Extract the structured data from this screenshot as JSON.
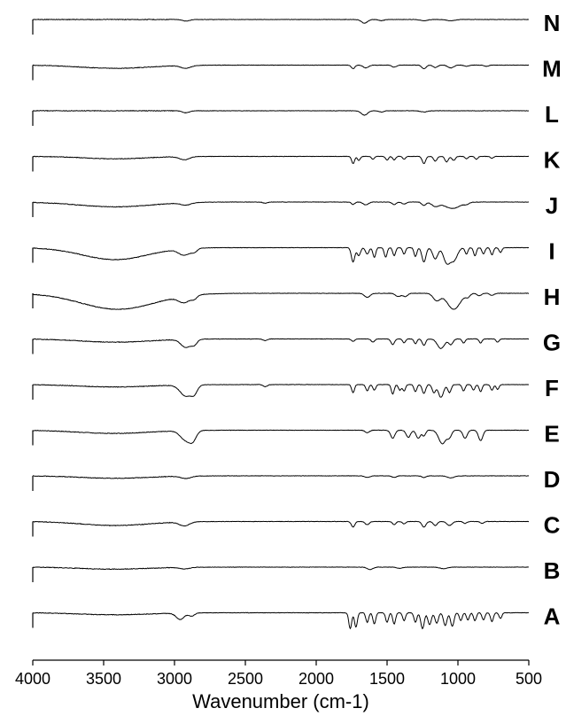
{
  "chart_data": {
    "type": "line",
    "title": "",
    "xlabel": "Wavenumber (cm-1)",
    "ylabel": "",
    "xlim": [
      4000,
      500
    ],
    "x_reversed": true,
    "xticks": [
      4000,
      3500,
      3000,
      2500,
      2000,
      1500,
      1000,
      500
    ],
    "stacked_offset": true,
    "y_axis_visible": false,
    "grid": false,
    "legend": "none",
    "series": [
      {
        "name": "N",
        "color": "#000000",
        "bands": [
          {
            "x": 2920,
            "depth": 0.2,
            "width": 25
          },
          {
            "x": 1660,
            "depth": 0.45,
            "width": 22
          },
          {
            "x": 1540,
            "depth": 0.15,
            "width": 18
          },
          {
            "x": 1240,
            "depth": 0.15,
            "width": 25
          },
          {
            "x": 1050,
            "depth": 0.15,
            "width": 30
          }
        ]
      },
      {
        "name": "M",
        "color": "#000000",
        "bands": [
          {
            "x": 3420,
            "depth": 0.4,
            "width": 240
          },
          {
            "x": 2920,
            "depth": 0.35,
            "width": 35
          },
          {
            "x": 1740,
            "depth": 0.45,
            "width": 12
          },
          {
            "x": 1650,
            "depth": 0.35,
            "width": 18
          },
          {
            "x": 1450,
            "depth": 0.25,
            "width": 15
          },
          {
            "x": 1240,
            "depth": 0.45,
            "width": 15
          },
          {
            "x": 1160,
            "depth": 0.3,
            "width": 15
          },
          {
            "x": 1050,
            "depth": 0.35,
            "width": 20
          },
          {
            "x": 940,
            "depth": 0.15,
            "width": 15
          },
          {
            "x": 800,
            "depth": 0.15,
            "width": 15
          }
        ]
      },
      {
        "name": "L",
        "color": "#000000",
        "bands": [
          {
            "x": 2920,
            "depth": 0.25,
            "width": 25
          },
          {
            "x": 1660,
            "depth": 0.55,
            "width": 22
          },
          {
            "x": 1540,
            "depth": 0.15,
            "width": 18
          },
          {
            "x": 1240,
            "depth": 0.15,
            "width": 25
          }
        ]
      },
      {
        "name": "K",
        "color": "#000000",
        "bands": [
          {
            "x": 3420,
            "depth": 0.3,
            "width": 220
          },
          {
            "x": 2930,
            "depth": 0.4,
            "width": 35
          },
          {
            "x": 1740,
            "depth": 0.9,
            "width": 10
          },
          {
            "x": 1700,
            "depth": 0.5,
            "width": 10
          },
          {
            "x": 1600,
            "depth": 0.35,
            "width": 10
          },
          {
            "x": 1500,
            "depth": 0.45,
            "width": 10
          },
          {
            "x": 1450,
            "depth": 0.45,
            "width": 10
          },
          {
            "x": 1380,
            "depth": 0.35,
            "width": 10
          },
          {
            "x": 1240,
            "depth": 0.9,
            "width": 12
          },
          {
            "x": 1160,
            "depth": 0.6,
            "width": 12
          },
          {
            "x": 1080,
            "depth": 0.7,
            "width": 12
          },
          {
            "x": 1030,
            "depth": 0.5,
            "width": 12
          },
          {
            "x": 940,
            "depth": 0.3,
            "width": 10
          },
          {
            "x": 870,
            "depth": 0.35,
            "width": 10
          },
          {
            "x": 760,
            "depth": 0.25,
            "width": 10
          }
        ]
      },
      {
        "name": "J",
        "color": "#000000",
        "bands": [
          {
            "x": 3420,
            "depth": 0.6,
            "width": 260
          },
          {
            "x": 2920,
            "depth": 0.3,
            "width": 35
          },
          {
            "x": 2360,
            "depth": 0.15,
            "width": 15
          },
          {
            "x": 1740,
            "depth": 0.3,
            "width": 12
          },
          {
            "x": 1650,
            "depth": 0.35,
            "width": 18
          },
          {
            "x": 1450,
            "depth": 0.3,
            "width": 15
          },
          {
            "x": 1380,
            "depth": 0.25,
            "width": 15
          },
          {
            "x": 1240,
            "depth": 0.4,
            "width": 15
          },
          {
            "x": 1160,
            "depth": 0.5,
            "width": 25
          },
          {
            "x": 1040,
            "depth": 0.8,
            "width": 55
          },
          {
            "x": 940,
            "depth": 0.2,
            "width": 15
          }
        ]
      },
      {
        "name": "I",
        "color": "#000000",
        "bands": [
          {
            "x": 3420,
            "depth": 1.5,
            "width": 230
          },
          {
            "x": 2930,
            "depth": 0.8,
            "width": 40
          },
          {
            "x": 2860,
            "depth": 0.4,
            "width": 20
          },
          {
            "x": 1740,
            "depth": 1.8,
            "width": 12
          },
          {
            "x": 1700,
            "depth": 1.0,
            "width": 12
          },
          {
            "x": 1640,
            "depth": 0.8,
            "width": 12
          },
          {
            "x": 1590,
            "depth": 1.2,
            "width": 10
          },
          {
            "x": 1510,
            "depth": 1.2,
            "width": 10
          },
          {
            "x": 1450,
            "depth": 1.0,
            "width": 10
          },
          {
            "x": 1380,
            "depth": 0.8,
            "width": 10
          },
          {
            "x": 1300,
            "depth": 1.1,
            "width": 10
          },
          {
            "x": 1240,
            "depth": 1.8,
            "width": 14
          },
          {
            "x": 1160,
            "depth": 1.4,
            "width": 18
          },
          {
            "x": 1080,
            "depth": 1.8,
            "width": 22
          },
          {
            "x": 1030,
            "depth": 1.6,
            "width": 25
          },
          {
            "x": 940,
            "depth": 0.8,
            "width": 10
          },
          {
            "x": 880,
            "depth": 1.0,
            "width": 10
          },
          {
            "x": 820,
            "depth": 0.8,
            "width": 10
          },
          {
            "x": 760,
            "depth": 0.9,
            "width": 10
          },
          {
            "x": 700,
            "depth": 0.6,
            "width": 10
          }
        ]
      },
      {
        "name": "H",
        "color": "#000000",
        "bands": [
          {
            "x": 3400,
            "depth": 2.0,
            "width": 260
          },
          {
            "x": 2930,
            "depth": 0.8,
            "width": 40
          },
          {
            "x": 2860,
            "depth": 0.4,
            "width": 20
          },
          {
            "x": 1640,
            "depth": 0.5,
            "width": 20
          },
          {
            "x": 1420,
            "depth": 0.4,
            "width": 20
          },
          {
            "x": 1370,
            "depth": 0.4,
            "width": 15
          },
          {
            "x": 1150,
            "depth": 0.9,
            "width": 25
          },
          {
            "x": 1030,
            "depth": 2.0,
            "width": 45
          },
          {
            "x": 930,
            "depth": 0.4,
            "width": 15
          },
          {
            "x": 850,
            "depth": 0.3,
            "width": 15
          },
          {
            "x": 760,
            "depth": 0.25,
            "width": 15
          }
        ]
      },
      {
        "name": "G",
        "color": "#000000",
        "bands": [
          {
            "x": 3420,
            "depth": 0.4,
            "width": 250
          },
          {
            "x": 2920,
            "depth": 1.0,
            "width": 35
          },
          {
            "x": 2860,
            "depth": 0.6,
            "width": 20
          },
          {
            "x": 2360,
            "depth": 0.2,
            "width": 15
          },
          {
            "x": 1740,
            "depth": 0.3,
            "width": 12
          },
          {
            "x": 1600,
            "depth": 0.4,
            "width": 12
          },
          {
            "x": 1460,
            "depth": 0.7,
            "width": 12
          },
          {
            "x": 1380,
            "depth": 0.5,
            "width": 10
          },
          {
            "x": 1300,
            "depth": 0.6,
            "width": 10
          },
          {
            "x": 1240,
            "depth": 0.8,
            "width": 12
          },
          {
            "x": 1120,
            "depth": 1.2,
            "width": 25
          },
          {
            "x": 1050,
            "depth": 0.7,
            "width": 15
          },
          {
            "x": 960,
            "depth": 0.5,
            "width": 10
          },
          {
            "x": 840,
            "depth": 0.5,
            "width": 10
          },
          {
            "x": 720,
            "depth": 0.4,
            "width": 10
          }
        ]
      },
      {
        "name": "F",
        "color": "#000000",
        "bands": [
          {
            "x": 3420,
            "depth": 0.3,
            "width": 250
          },
          {
            "x": 2920,
            "depth": 1.4,
            "width": 40
          },
          {
            "x": 2860,
            "depth": 0.9,
            "width": 22
          },
          {
            "x": 2360,
            "depth": 0.25,
            "width": 15
          },
          {
            "x": 1740,
            "depth": 1.0,
            "width": 10
          },
          {
            "x": 1640,
            "depth": 0.8,
            "width": 10
          },
          {
            "x": 1590,
            "depth": 0.7,
            "width": 10
          },
          {
            "x": 1460,
            "depth": 1.2,
            "width": 10
          },
          {
            "x": 1410,
            "depth": 0.7,
            "width": 10
          },
          {
            "x": 1380,
            "depth": 0.8,
            "width": 10
          },
          {
            "x": 1300,
            "depth": 0.9,
            "width": 10
          },
          {
            "x": 1240,
            "depth": 1.1,
            "width": 12
          },
          {
            "x": 1170,
            "depth": 1.0,
            "width": 12
          },
          {
            "x": 1120,
            "depth": 1.6,
            "width": 18
          },
          {
            "x": 1060,
            "depth": 1.0,
            "width": 12
          },
          {
            "x": 960,
            "depth": 0.8,
            "width": 10
          },
          {
            "x": 890,
            "depth": 0.7,
            "width": 10
          },
          {
            "x": 840,
            "depth": 0.9,
            "width": 10
          },
          {
            "x": 760,
            "depth": 0.7,
            "width": 10
          },
          {
            "x": 720,
            "depth": 0.6,
            "width": 10
          }
        ]
      },
      {
        "name": "E",
        "color": "#000000",
        "bands": [
          {
            "x": 3430,
            "depth": 0.4,
            "width": 250
          },
          {
            "x": 2920,
            "depth": 1.2,
            "width": 38
          },
          {
            "x": 2870,
            "depth": 1.0,
            "width": 25
          },
          {
            "x": 1640,
            "depth": 0.3,
            "width": 15
          },
          {
            "x": 1460,
            "depth": 1.0,
            "width": 15
          },
          {
            "x": 1350,
            "depth": 0.9,
            "width": 15
          },
          {
            "x": 1280,
            "depth": 1.0,
            "width": 15
          },
          {
            "x": 1240,
            "depth": 0.7,
            "width": 12
          },
          {
            "x": 1110,
            "depth": 1.7,
            "width": 25
          },
          {
            "x": 1060,
            "depth": 0.8,
            "width": 15
          },
          {
            "x": 950,
            "depth": 1.0,
            "width": 15
          },
          {
            "x": 840,
            "depth": 1.3,
            "width": 15
          }
        ]
      },
      {
        "name": "D",
        "color": "#000000",
        "bands": [
          {
            "x": 3420,
            "depth": 0.3,
            "width": 240
          },
          {
            "x": 2920,
            "depth": 0.3,
            "width": 35
          },
          {
            "x": 1640,
            "depth": 0.2,
            "width": 18
          },
          {
            "x": 1450,
            "depth": 0.2,
            "width": 15
          },
          {
            "x": 1240,
            "depth": 0.2,
            "width": 15
          },
          {
            "x": 1050,
            "depth": 0.25,
            "width": 25
          }
        ]
      },
      {
        "name": "C",
        "color": "#000000",
        "bands": [
          {
            "x": 3420,
            "depth": 0.5,
            "width": 240
          },
          {
            "x": 2930,
            "depth": 0.5,
            "width": 35
          },
          {
            "x": 1740,
            "depth": 0.7,
            "width": 12
          },
          {
            "x": 1640,
            "depth": 0.4,
            "width": 15
          },
          {
            "x": 1450,
            "depth": 0.4,
            "width": 12
          },
          {
            "x": 1380,
            "depth": 0.3,
            "width": 12
          },
          {
            "x": 1240,
            "depth": 0.7,
            "width": 14
          },
          {
            "x": 1160,
            "depth": 0.5,
            "width": 14
          },
          {
            "x": 1060,
            "depth": 0.5,
            "width": 18
          },
          {
            "x": 950,
            "depth": 0.25,
            "width": 12
          },
          {
            "x": 830,
            "depth": 0.25,
            "width": 12
          }
        ]
      },
      {
        "name": "B",
        "color": "#000000",
        "bands": [
          {
            "x": 3430,
            "depth": 0.25,
            "width": 240
          },
          {
            "x": 2930,
            "depth": 0.2,
            "width": 35
          },
          {
            "x": 1620,
            "depth": 0.3,
            "width": 20
          },
          {
            "x": 1410,
            "depth": 0.15,
            "width": 20
          },
          {
            "x": 1100,
            "depth": 0.2,
            "width": 25
          }
        ]
      },
      {
        "name": "A",
        "color": "#000000",
        "bands": [
          {
            "x": 3430,
            "depth": 0.25,
            "width": 250
          },
          {
            "x": 2960,
            "depth": 0.8,
            "width": 28
          },
          {
            "x": 2880,
            "depth": 0.4,
            "width": 20
          },
          {
            "x": 1760,
            "depth": 2.0,
            "width": 10
          },
          {
            "x": 1720,
            "depth": 1.8,
            "width": 10
          },
          {
            "x": 1640,
            "depth": 1.2,
            "width": 10
          },
          {
            "x": 1590,
            "depth": 1.4,
            "width": 10
          },
          {
            "x": 1500,
            "depth": 1.2,
            "width": 10
          },
          {
            "x": 1450,
            "depth": 1.4,
            "width": 10
          },
          {
            "x": 1380,
            "depth": 1.0,
            "width": 10
          },
          {
            "x": 1300,
            "depth": 1.2,
            "width": 10
          },
          {
            "x": 1250,
            "depth": 2.0,
            "width": 12
          },
          {
            "x": 1200,
            "depth": 1.5,
            "width": 12
          },
          {
            "x": 1150,
            "depth": 1.3,
            "width": 12
          },
          {
            "x": 1090,
            "depth": 1.6,
            "width": 12
          },
          {
            "x": 1040,
            "depth": 1.7,
            "width": 12
          },
          {
            "x": 980,
            "depth": 1.0,
            "width": 10
          },
          {
            "x": 930,
            "depth": 0.9,
            "width": 10
          },
          {
            "x": 880,
            "depth": 1.0,
            "width": 10
          },
          {
            "x": 820,
            "depth": 0.9,
            "width": 10
          },
          {
            "x": 760,
            "depth": 1.1,
            "width": 10
          },
          {
            "x": 700,
            "depth": 0.7,
            "width": 10
          }
        ]
      }
    ]
  }
}
